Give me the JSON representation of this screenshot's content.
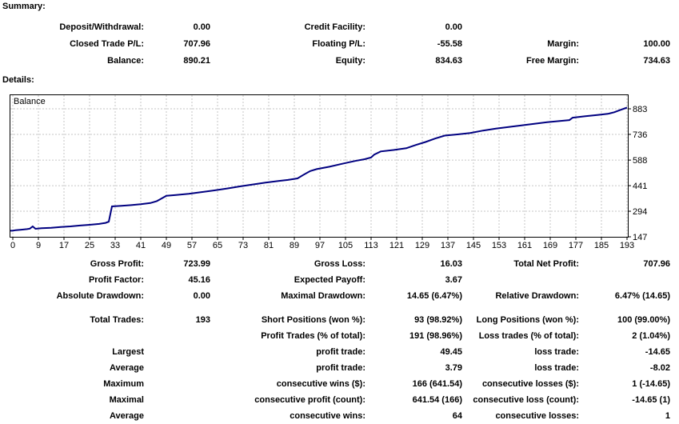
{
  "summary": {
    "heading": "Summary:",
    "rows": [
      {
        "c1l": "Deposit/Withdrawal:",
        "c1v": "0.00",
        "c2l": "Credit Facility:",
        "c2v": "0.00",
        "c3l": "",
        "c3v": ""
      },
      {
        "c1l": "Closed Trade P/L:",
        "c1v": "707.96",
        "c2l": "Floating P/L:",
        "c2v": "-55.58",
        "c3l": "Margin:",
        "c3v": "100.00"
      },
      {
        "c1l": "Balance:",
        "c1v": "890.21",
        "c2l": "Equity:",
        "c2v": "834.63",
        "c3l": "Free Margin:",
        "c3v": "734.63"
      }
    ]
  },
  "details": {
    "heading": "Details:",
    "rows": [
      {
        "c1l": "Gross Profit:",
        "c1v": "723.99",
        "c2l": "Gross Loss:",
        "c2v": "16.03",
        "c3l": "Total Net Profit:",
        "c3v": "707.96"
      },
      {
        "c1l": "Profit Factor:",
        "c1v": "45.16",
        "c2l": "Expected Payoff:",
        "c2v": "3.67",
        "c3l": "",
        "c3v": ""
      },
      {
        "c1l": "Absolute Drawdown:",
        "c1v": "0.00",
        "c2l": "Maximal Drawdown:",
        "c2v": "14.65 (6.47%)",
        "c3l": "Relative Drawdown:",
        "c3v": "6.47% (14.65)"
      },
      {
        "c1l": "Total Trades:",
        "c1v": "193",
        "c2l": "Short Positions (won %):",
        "c2v": "93 (98.92%)",
        "c3l": "Long Positions (won %):",
        "c3v": "100 (99.00%)"
      },
      {
        "c1l": "",
        "c1v": "",
        "c2l": "Profit Trades (% of total):",
        "c2v": "191 (98.96%)",
        "c3l": "Loss trades (% of total):",
        "c3v": "2 (1.04%)"
      },
      {
        "c1l": "Largest",
        "c1v": "",
        "c2l": "profit trade:",
        "c2v": "49.45",
        "c3l": "loss trade:",
        "c3v": "-14.65"
      },
      {
        "c1l": "Average",
        "c1v": "",
        "c2l": "profit trade:",
        "c2v": "3.79",
        "c3l": "loss trade:",
        "c3v": "-8.02"
      },
      {
        "c1l": "Maximum",
        "c1v": "",
        "c2l": "consecutive wins ($):",
        "c2v": "166 (641.54)",
        "c3l": "consecutive losses ($):",
        "c3v": "1 (-14.65)"
      },
      {
        "c1l": "Maximal",
        "c1v": "",
        "c2l": "consecutive profit (count):",
        "c2v": "641.54 (166)",
        "c3l": "consecutive loss (count):",
        "c3v": "-14.65 (1)"
      },
      {
        "c1l": "Average",
        "c1v": "",
        "c2l": "consecutive wins:",
        "c2v": "64",
        "c3l": "consecutive losses:",
        "c3v": "1"
      }
    ]
  },
  "chart_data": {
    "type": "line",
    "title": "Balance",
    "xlabel": "",
    "ylabel": "",
    "x_ticks": [
      0,
      9,
      17,
      25,
      33,
      41,
      49,
      57,
      65,
      73,
      81,
      89,
      97,
      105,
      113,
      121,
      129,
      137,
      145,
      153,
      161,
      169,
      177,
      185,
      193
    ],
    "y_ticks": [
      883,
      736,
      588,
      441,
      294,
      147
    ],
    "xlim": [
      0,
      193
    ],
    "ylim": [
      147,
      920
    ],
    "grid": "dashed",
    "legend_position": "none",
    "line_color": "#000080",
    "grid_color": "#c6c6c6",
    "axis_color": "#000000",
    "series": [
      {
        "name": "Balance",
        "points": [
          [
            0,
            182
          ],
          [
            1,
            185
          ],
          [
            3,
            188
          ],
          [
            5,
            191
          ],
          [
            6,
            194
          ],
          [
            7,
            207
          ],
          [
            8,
            193
          ],
          [
            10,
            196
          ],
          [
            13,
            199
          ],
          [
            16,
            203
          ],
          [
            19,
            207
          ],
          [
            22,
            212
          ],
          [
            25,
            216
          ],
          [
            28,
            221
          ],
          [
            30,
            227
          ],
          [
            31,
            234
          ],
          [
            32,
            322
          ],
          [
            35,
            325
          ],
          [
            38,
            329
          ],
          [
            41,
            334
          ],
          [
            44,
            341
          ],
          [
            46,
            352
          ],
          [
            47,
            362
          ],
          [
            49,
            383
          ],
          [
            52,
            387
          ],
          [
            56,
            394
          ],
          [
            60,
            404
          ],
          [
            64,
            414
          ],
          [
            68,
            425
          ],
          [
            72,
            437
          ],
          [
            76,
            448
          ],
          [
            80,
            459
          ],
          [
            84,
            468
          ],
          [
            87,
            474
          ],
          [
            90,
            483
          ],
          [
            92,
            505
          ],
          [
            94,
            525
          ],
          [
            96,
            536
          ],
          [
            100,
            550
          ],
          [
            104,
            567
          ],
          [
            108,
            583
          ],
          [
            111,
            593
          ],
          [
            113,
            603
          ],
          [
            114,
            620
          ],
          [
            116,
            638
          ],
          [
            120,
            646
          ],
          [
            124,
            656
          ],
          [
            127,
            675
          ],
          [
            130,
            692
          ],
          [
            133,
            712
          ],
          [
            136,
            729
          ],
          [
            140,
            736
          ],
          [
            144,
            744
          ],
          [
            148,
            758
          ],
          [
            152,
            769
          ],
          [
            156,
            778
          ],
          [
            160,
            788
          ],
          [
            164,
            797
          ],
          [
            168,
            806
          ],
          [
            172,
            813
          ],
          [
            175,
            818
          ],
          [
            176,
            832
          ],
          [
            180,
            840
          ],
          [
            184,
            848
          ],
          [
            187,
            854
          ],
          [
            189,
            863
          ],
          [
            191,
            877
          ],
          [
            193,
            890
          ]
        ]
      }
    ]
  }
}
